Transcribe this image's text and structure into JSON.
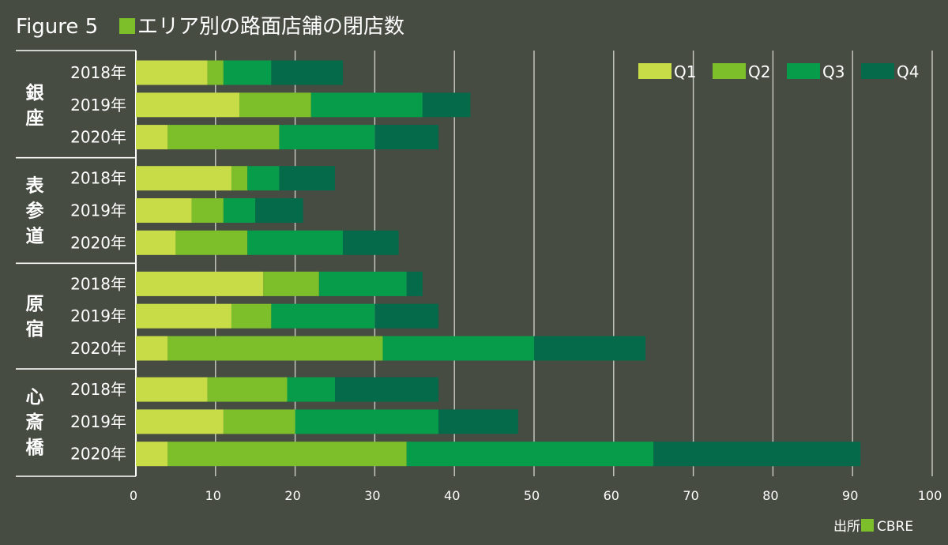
{
  "chart_data": {
    "type": "bar",
    "orientation": "horizontal",
    "stacked": true,
    "title": "Figure 5",
    "subtitle": "エリア別の路面店舗の閉店数",
    "title_marker_color": "#7cbf2a",
    "xlim": [
      0,
      100
    ],
    "xticks": [
      0,
      10,
      20,
      30,
      40,
      50,
      60,
      70,
      80,
      90,
      100
    ],
    "grid": true,
    "legend_position": "top-right",
    "series": [
      {
        "name": "Q1",
        "color": "#c8dc48"
      },
      {
        "name": "Q2",
        "color": "#7cbf2a"
      },
      {
        "name": "Q3",
        "color": "#079c4a"
      },
      {
        "name": "Q4",
        "color": "#046a4a"
      }
    ],
    "groups": [
      {
        "area": "銀座",
        "area_chars": [
          "銀",
          "座"
        ],
        "rows": [
          {
            "year": "2018年",
            "values": [
              9,
              2,
              6,
              9
            ]
          },
          {
            "year": "2019年",
            "values": [
              13,
              9,
              14,
              6
            ]
          },
          {
            "year": "2020年",
            "values": [
              4,
              14,
              12,
              8
            ]
          }
        ]
      },
      {
        "area": "表参道",
        "area_chars": [
          "表",
          "参",
          "道"
        ],
        "rows": [
          {
            "year": "2018年",
            "values": [
              12,
              2,
              4,
              7
            ]
          },
          {
            "year": "2019年",
            "values": [
              7,
              4,
              4,
              6
            ]
          },
          {
            "year": "2020年",
            "values": [
              5,
              9,
              12,
              7
            ]
          }
        ]
      },
      {
        "area": "原宿",
        "area_chars": [
          "原",
          "宿"
        ],
        "rows": [
          {
            "year": "2018年",
            "values": [
              16,
              7,
              11,
              2
            ]
          },
          {
            "year": "2019年",
            "values": [
              12,
              5,
              13,
              8
            ]
          },
          {
            "year": "2020年",
            "values": [
              4,
              27,
              19,
              14
            ]
          }
        ]
      },
      {
        "area": "心斎橋",
        "area_chars": [
          "心",
          "斎",
          "橋"
        ],
        "rows": [
          {
            "year": "2018年",
            "values": [
              9,
              10,
              6,
              13
            ]
          },
          {
            "year": "2019年",
            "values": [
              11,
              9,
              18,
              10
            ]
          },
          {
            "year": "2020年",
            "values": [
              4,
              30,
              31,
              26
            ]
          }
        ]
      }
    ],
    "source": "出所",
    "source_org": "CBRE"
  }
}
